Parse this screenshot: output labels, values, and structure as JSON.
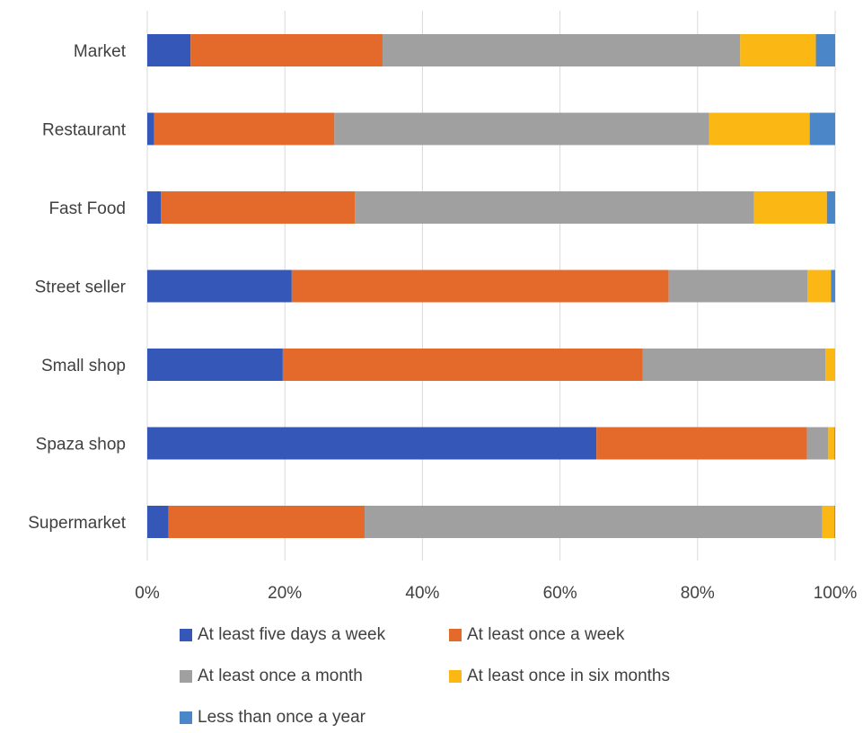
{
  "chart_data": {
    "type": "bar",
    "orientation": "horizontal",
    "stacked": "percent",
    "categories": [
      "Market",
      "Restaurant",
      "Fast Food",
      "Street seller",
      "Small shop",
      "Spaza shop",
      "Supermarket"
    ],
    "series": [
      {
        "name": "At least five days a week",
        "color": "#3558b8",
        "values": [
          6.3,
          1.0,
          2.0,
          21.0,
          19.7,
          65.3,
          3.1
        ]
      },
      {
        "name": "At least once a week",
        "color": "#e46a2b",
        "values": [
          27.9,
          26.2,
          28.2,
          54.8,
          52.3,
          30.6,
          28.5
        ]
      },
      {
        "name": "At least once a month",
        "color": "#a0a0a0",
        "values": [
          52.0,
          54.5,
          58.0,
          20.2,
          26.6,
          3.1,
          66.5
        ]
      },
      {
        "name": "At least once in six months",
        "color": "#fbb713",
        "values": [
          11.0,
          14.6,
          10.6,
          3.4,
          1.4,
          0.9,
          1.8
        ]
      },
      {
        "name": "Less than once a year",
        "color": "#4a86c8",
        "values": [
          2.8,
          3.7,
          1.2,
          0.6,
          0.0,
          0.1,
          0.1
        ]
      }
    ],
    "x_ticks": [
      "0%",
      "20%",
      "40%",
      "60%",
      "80%",
      "100%"
    ],
    "xlim": [
      0,
      100
    ],
    "grid": "vertical",
    "legend_position": "bottom"
  }
}
